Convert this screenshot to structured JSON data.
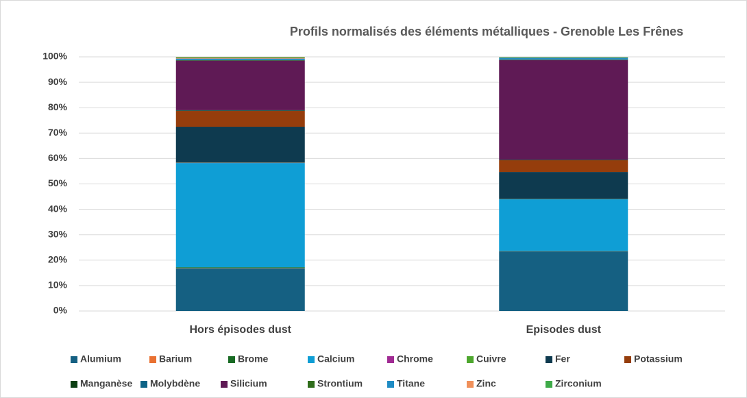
{
  "chart_data": {
    "type": "stacked_bar",
    "title": "Profils normalisés des éléments métalliques - Grenoble Les Frênes",
    "categories": [
      "Hors épisodes dust",
      "Episodes dust"
    ],
    "series": [
      {
        "name": "Alumium",
        "color": "#156082",
        "values": [
          16.8,
          23.5
        ]
      },
      {
        "name": "Barium",
        "color": "#e97132",
        "values": [
          0.1,
          0.05
        ]
      },
      {
        "name": "Brome",
        "color": "#196b24",
        "values": [
          0.3,
          0.1
        ]
      },
      {
        "name": "Calcium",
        "color": "#0f9ed5",
        "values": [
          41.0,
          20.3
        ]
      },
      {
        "name": "Chrome",
        "color": "#a02b93",
        "values": [
          0.1,
          0.05
        ]
      },
      {
        "name": "Cuivre",
        "color": "#4ea72e",
        "values": [
          0.1,
          0.1
        ]
      },
      {
        "name": "Fer",
        "color": "#0e3a4f",
        "values": [
          14.1,
          10.6
        ]
      },
      {
        "name": "Potassium",
        "color": "#953d0c",
        "values": [
          6.2,
          4.6
        ]
      },
      {
        "name": "Manganèse",
        "color": "#0c3f13",
        "values": [
          0.2,
          0.2
        ]
      },
      {
        "name": "Molybdène",
        "color": "#0d6386",
        "values": [
          0.1,
          0.05
        ]
      },
      {
        "name": "Silicium",
        "color": "#5f1a55",
        "values": [
          19.5,
          39.2
        ]
      },
      {
        "name": "Strontium",
        "color": "#2f6d1b",
        "values": [
          0.2,
          0.2
        ]
      },
      {
        "name": "Titane",
        "color": "#1f8cc4",
        "values": [
          0.6,
          0.7
        ]
      },
      {
        "name": "Zinc",
        "color": "#f0905a",
        "values": [
          0.4,
          0.1
        ]
      },
      {
        "name": "Zirconium",
        "color": "#3eaa48",
        "values": [
          0.3,
          0.2
        ]
      }
    ],
    "ylim": [
      0,
      100
    ],
    "yticks": [
      {
        "value": 0,
        "label": "0%"
      },
      {
        "value": 10,
        "label": "10%"
      },
      {
        "value": 20,
        "label": "20%"
      },
      {
        "value": 30,
        "label": "30%"
      },
      {
        "value": 40,
        "label": "40%"
      },
      {
        "value": 50,
        "label": "50%"
      },
      {
        "value": 60,
        "label": "60%"
      },
      {
        "value": 70,
        "label": "70%"
      },
      {
        "value": 80,
        "label": "80%"
      },
      {
        "value": 90,
        "label": "90%"
      },
      {
        "value": 100,
        "label": "100%"
      }
    ],
    "grid": true,
    "legend": "bottom"
  }
}
